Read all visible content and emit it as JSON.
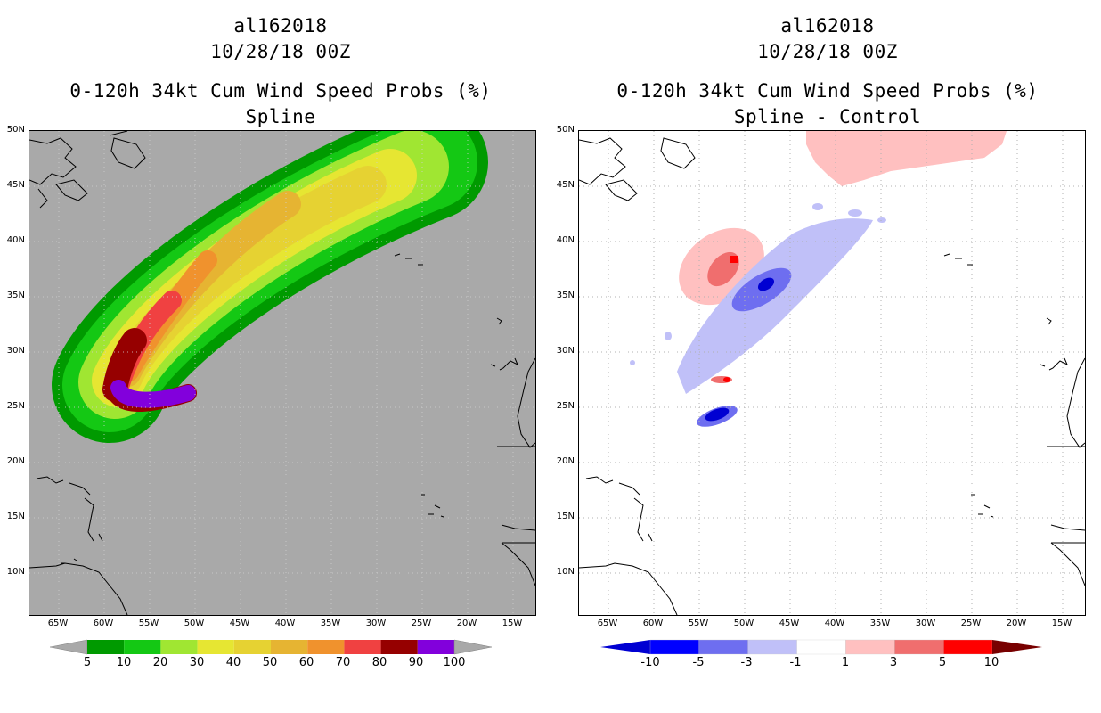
{
  "left_panel": {
    "storm_id": "al162018",
    "datetime": "10/28/18 00Z",
    "product": "0-120h 34kt Cum Wind Speed Probs (%)",
    "subtitle": "Spline",
    "colorbar_labels": [
      "5",
      "10",
      "20",
      "30",
      "40",
      "50",
      "60",
      "70",
      "80",
      "90",
      "100"
    ],
    "colorbar_colors": [
      "#009a00",
      "#14c814",
      "#a0e632",
      "#e6e632",
      "#e6d232",
      "#e6b432",
      "#f0922d",
      "#f04141",
      "#960000",
      "#8200dc"
    ],
    "background_color": "#a9a9a9"
  },
  "right_panel": {
    "storm_id": "al162018",
    "datetime": "10/28/18 00Z",
    "product": "0-120h 34kt Cum Wind Speed Probs (%)",
    "subtitle": "Spline - Control",
    "colorbar_labels": [
      "-10",
      "-5",
      "-3",
      "-1",
      "1",
      "3",
      "5",
      "10"
    ],
    "colorbar_colors": [
      "#0000d2",
      "#0000ff",
      "#6e6ef0",
      "#c0c0f8",
      "#ffffff",
      "#ffc0c0",
      "#f06e6e",
      "#ff0000",
      "#780000"
    ]
  },
  "axes": {
    "lat_labels": [
      "50N",
      "45N",
      "40N",
      "35N",
      "30N",
      "25N",
      "20N",
      "15N",
      "10N"
    ],
    "lon_labels": [
      "65W",
      "60W",
      "55W",
      "50W",
      "45W",
      "40W",
      "35W",
      "30W",
      "25W",
      "20W",
      "15W"
    ]
  }
}
